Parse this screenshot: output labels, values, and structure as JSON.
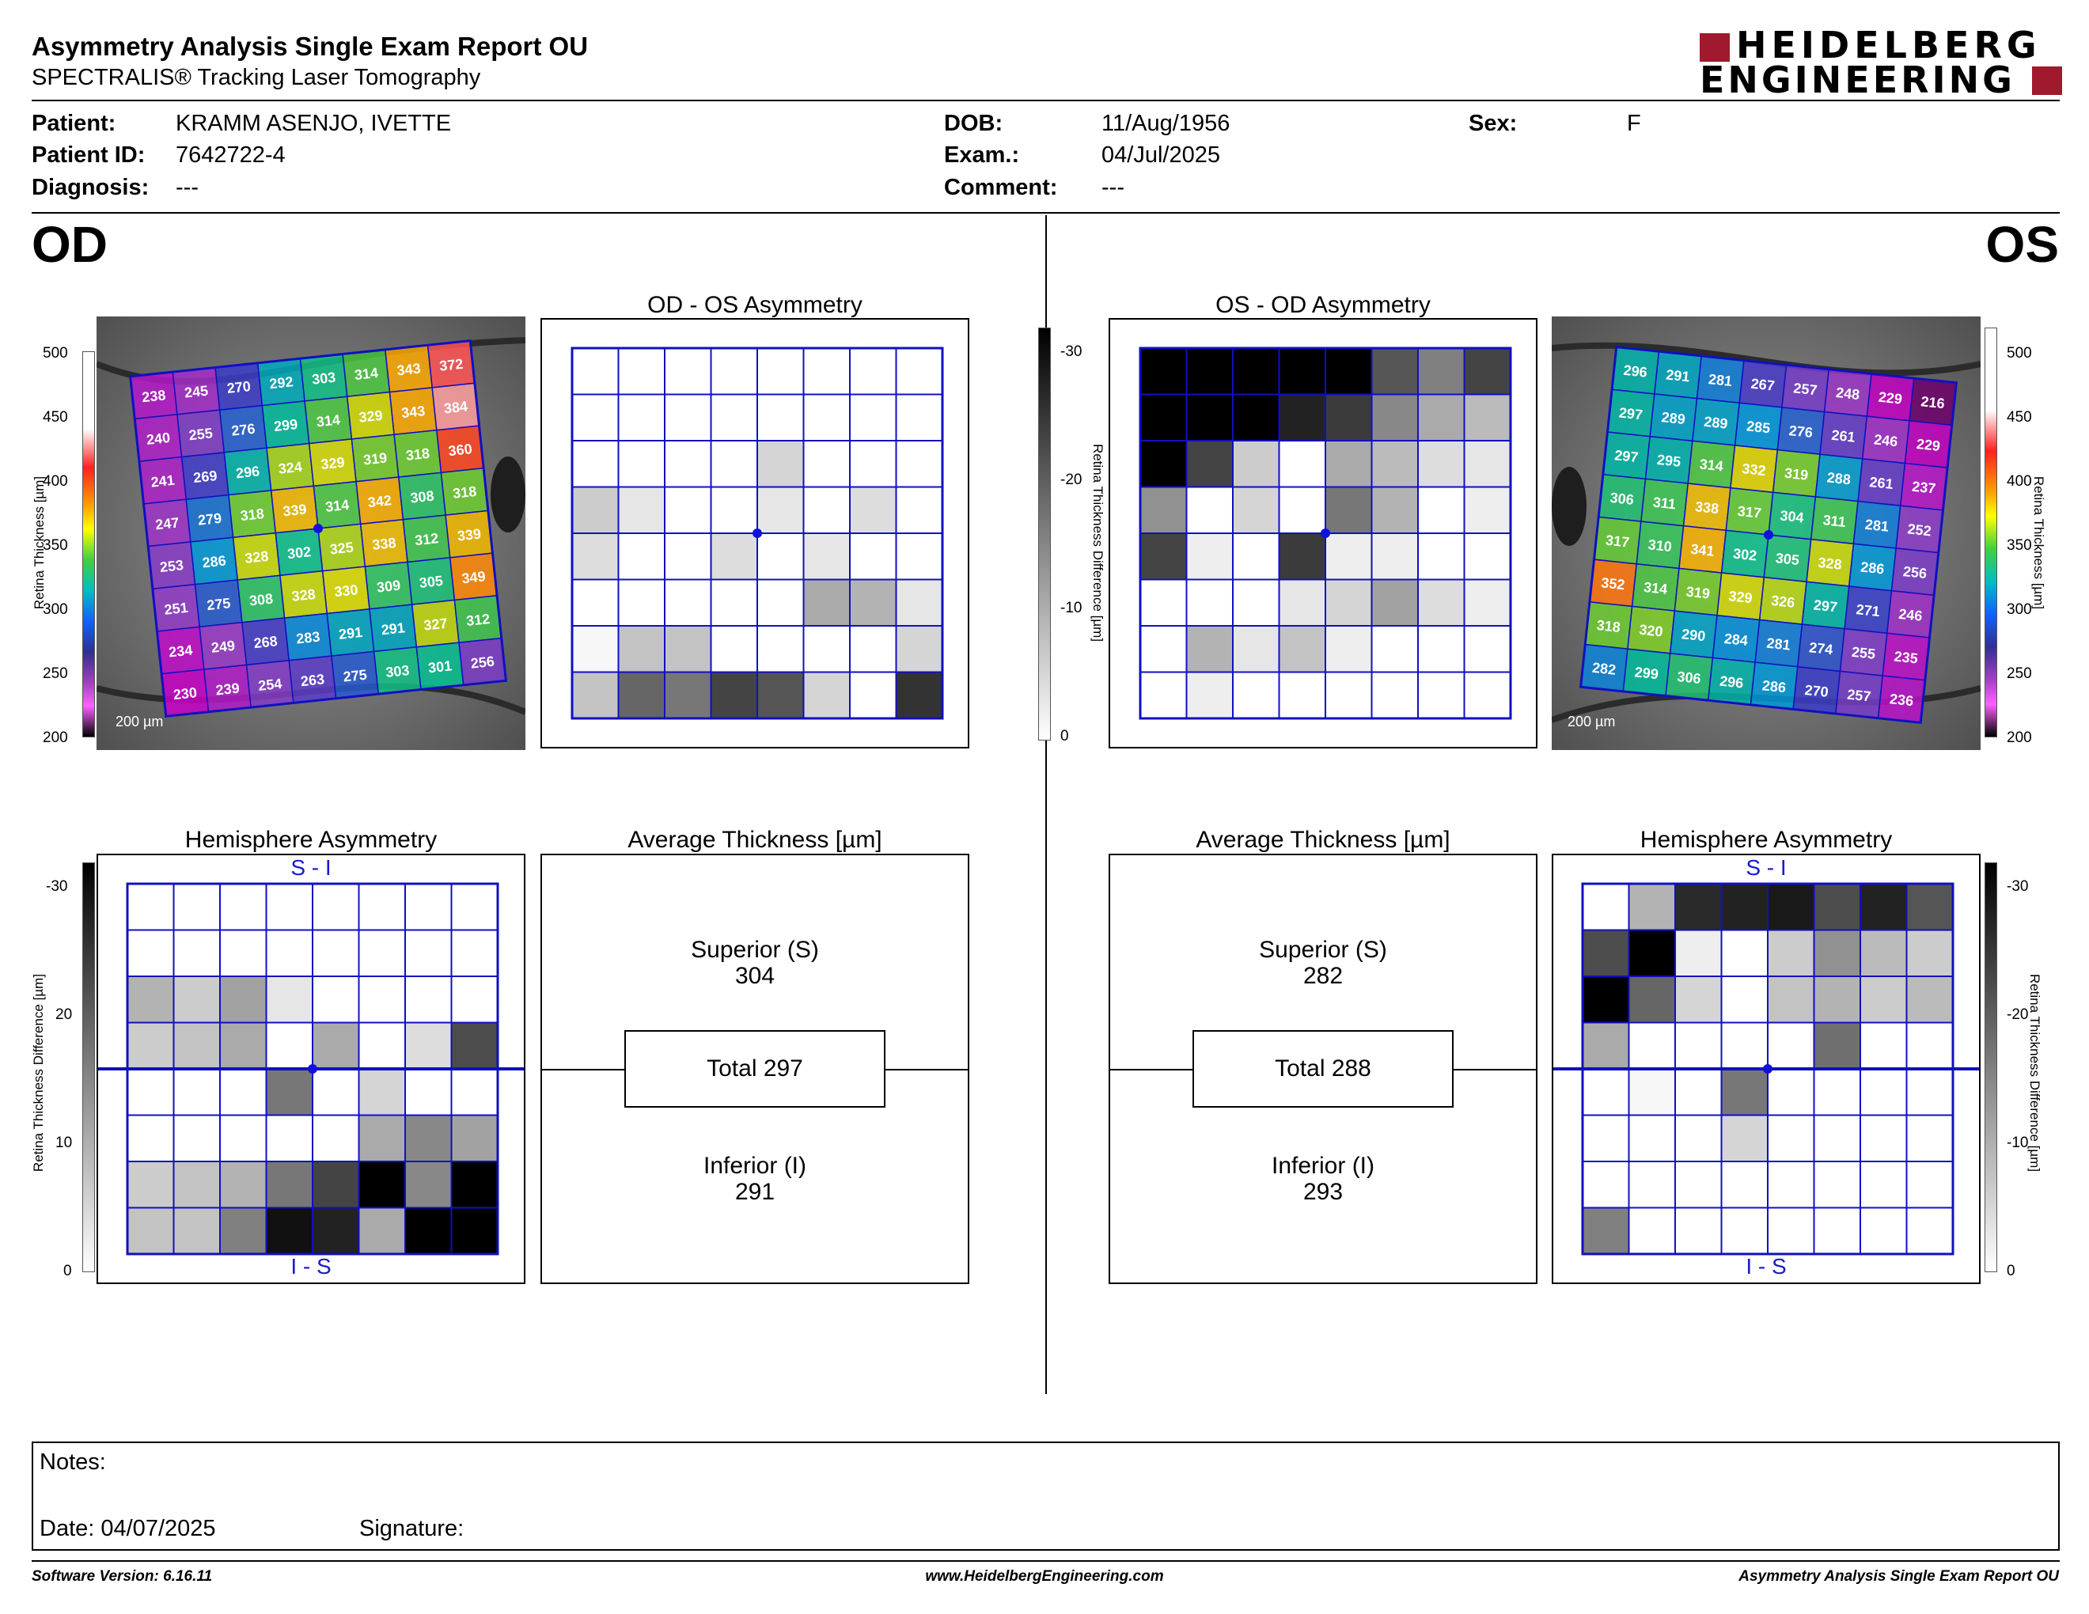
{
  "header": {
    "title": "Asymmetry Analysis Single Exam Report OU",
    "subtitle": "SPECTRALIS® Tracking Laser Tomography",
    "logo_line1": "HEIDELBERG",
    "logo_line2": "ENGINEERING",
    "brand_color": "#a0192c"
  },
  "patient": {
    "patient_label": "Patient:",
    "patient_value": "KRAMM ASENJO, IVETTE",
    "id_label": "Patient ID:",
    "id_value": "7642722-4",
    "diagnosis_label": "Diagnosis:",
    "diagnosis_value": "---",
    "dob_label": "DOB:",
    "dob_value": "11/Aug/1956",
    "exam_label": "Exam.:",
    "exam_value": "04/Jul/2025",
    "comment_label": "Comment:",
    "comment_value": "---",
    "sex_label": "Sex:",
    "sex_value": "F"
  },
  "eyes": {
    "left_label": "OD",
    "right_label": "OS"
  },
  "panels": {
    "od_asym_title": "OD - OS Asymmetry",
    "os_asym_title": "OS - OD Asymmetry",
    "od_hemi_title": "Hemisphere Asymmetry",
    "os_hemi_title": "Hemisphere Asymmetry",
    "od_avg_title": "Average Thickness [µm]",
    "os_avg_title": "Average Thickness [µm]",
    "hemi_top": "S - I",
    "hemi_bottom": "I - S",
    "scale_bar": "200 µm",
    "thickness_axis": "Retina Thickness [µm]",
    "diff_axis": "Retina Thickness Difference [µm]",
    "thickness_ticks": [
      "500",
      "450",
      "400",
      "350",
      "300",
      "250",
      "200"
    ],
    "diff_ticks": [
      "-30",
      "-20",
      "-10",
      "0"
    ]
  },
  "averages": {
    "od": {
      "superior_label": "Superior (S)",
      "superior": "304",
      "total": "Total 297",
      "inferior_label": "Inferior (I)",
      "inferior": "291"
    },
    "os": {
      "superior_label": "Superior (S)",
      "superior": "282",
      "total": "Total 288",
      "inferior_label": "Inferior (I)",
      "inferior": "293"
    }
  },
  "od_thickness_grid": [
    [
      238,
      245,
      270,
      292,
      303,
      314,
      343,
      372
    ],
    [
      240,
      255,
      276,
      299,
      314,
      329,
      343,
      384
    ],
    [
      241,
      269,
      296,
      324,
      329,
      319,
      318,
      360
    ],
    [
      247,
      279,
      318,
      339,
      314,
      342,
      308,
      318
    ],
    [
      253,
      286,
      328,
      302,
      325,
      338,
      312,
      339
    ],
    [
      251,
      275,
      308,
      328,
      330,
      309,
      305,
      349
    ],
    [
      234,
      249,
      268,
      283,
      291,
      291,
      327,
      312
    ],
    [
      230,
      239,
      254,
      263,
      275,
      303,
      301,
      256
    ]
  ],
  "os_thickness_grid": [
    [
      296,
      291,
      281,
      267,
      257,
      248,
      229,
      216
    ],
    [
      297,
      289,
      289,
      285,
      276,
      261,
      246,
      229
    ],
    [
      297,
      295,
      314,
      332,
      319,
      288,
      261,
      237
    ],
    [
      306,
      311,
      338,
      317,
      304,
      311,
      281,
      252
    ],
    [
      317,
      310,
      341,
      302,
      305,
      328,
      286,
      256
    ],
    [
      352,
      314,
      319,
      329,
      326,
      297,
      271,
      246
    ],
    [
      318,
      320,
      290,
      284,
      281,
      274,
      255,
      235
    ],
    [
      282,
      299,
      306,
      296,
      286,
      270,
      257,
      236
    ]
  ],
  "od_asym_grid": [
    [
      0,
      0,
      0,
      0,
      0,
      0,
      0,
      0
    ],
    [
      0,
      0,
      0,
      0,
      0,
      0,
      0,
      0
    ],
    [
      0,
      0,
      0,
      0,
      5,
      0,
      0,
      0
    ],
    [
      6,
      3,
      0,
      0,
      3,
      0,
      4,
      0
    ],
    [
      4,
      0,
      0,
      4,
      0,
      3,
      0,
      0
    ],
    [
      0,
      0,
      0,
      0,
      0,
      10,
      9,
      3
    ],
    [
      1,
      7,
      7,
      0,
      0,
      0,
      0,
      5
    ],
    [
      7,
      18,
      16,
      22,
      20,
      5,
      0,
      24
    ]
  ],
  "os_asym_grid": [
    [
      30,
      30,
      30,
      30,
      30,
      20,
      15,
      22
    ],
    [
      30,
      30,
      30,
      26,
      23,
      14,
      10,
      8
    ],
    [
      30,
      22,
      6,
      0,
      10,
      8,
      4,
      3
    ],
    [
      13,
      0,
      5,
      0,
      16,
      9,
      0,
      2
    ],
    [
      22,
      2,
      0,
      23,
      2,
      2,
      0,
      0
    ],
    [
      0,
      0,
      0,
      3,
      5,
      11,
      4,
      2
    ],
    [
      0,
      9,
      3,
      7,
      2,
      0,
      0,
      0
    ],
    [
      0,
      2,
      0,
      0,
      0,
      0,
      0,
      0
    ]
  ],
  "od_hemi_grid": [
    [
      0,
      0,
      0,
      0,
      0,
      0,
      0,
      0
    ],
    [
      0,
      0,
      0,
      0,
      0,
      0,
      0,
      0
    ],
    [
      9,
      6,
      11,
      3,
      0,
      0,
      0,
      0
    ],
    [
      6,
      7,
      10,
      0,
      10,
      0,
      4,
      21
    ],
    [
      0,
      0,
      0,
      16,
      0,
      5,
      0,
      0
    ],
    [
      0,
      0,
      0,
      0,
      0,
      10,
      14,
      11
    ],
    [
      6,
      7,
      9,
      16,
      22,
      30,
      14,
      30
    ],
    [
      7,
      7,
      15,
      28,
      26,
      10,
      30,
      30
    ]
  ],
  "os_hemi_grid": [
    [
      0,
      9,
      25,
      26,
      27,
      21,
      26,
      20
    ],
    [
      21,
      30,
      2,
      0,
      6,
      13,
      8,
      6
    ],
    [
      30,
      18,
      5,
      0,
      7,
      9,
      6,
      8
    ],
    [
      10,
      0,
      0,
      0,
      0,
      17,
      0,
      0
    ],
    [
      0,
      1,
      0,
      16,
      0,
      0,
      0,
      0
    ],
    [
      0,
      0,
      0,
      5,
      0,
      0,
      0,
      0
    ],
    [
      0,
      0,
      0,
      0,
      0,
      0,
      0,
      0
    ],
    [
      15,
      0,
      0,
      0,
      0,
      0,
      0,
      0
    ]
  ],
  "notes": {
    "notes_label": "Notes:",
    "date_label": "Date: 04/07/2025",
    "signature_label": "Signature:"
  },
  "footer": {
    "software": "Software Version: 6.16.11",
    "website": "www.HeidelbergEngineering.com",
    "report_name": "Asymmetry Analysis Single Exam Report OU"
  }
}
